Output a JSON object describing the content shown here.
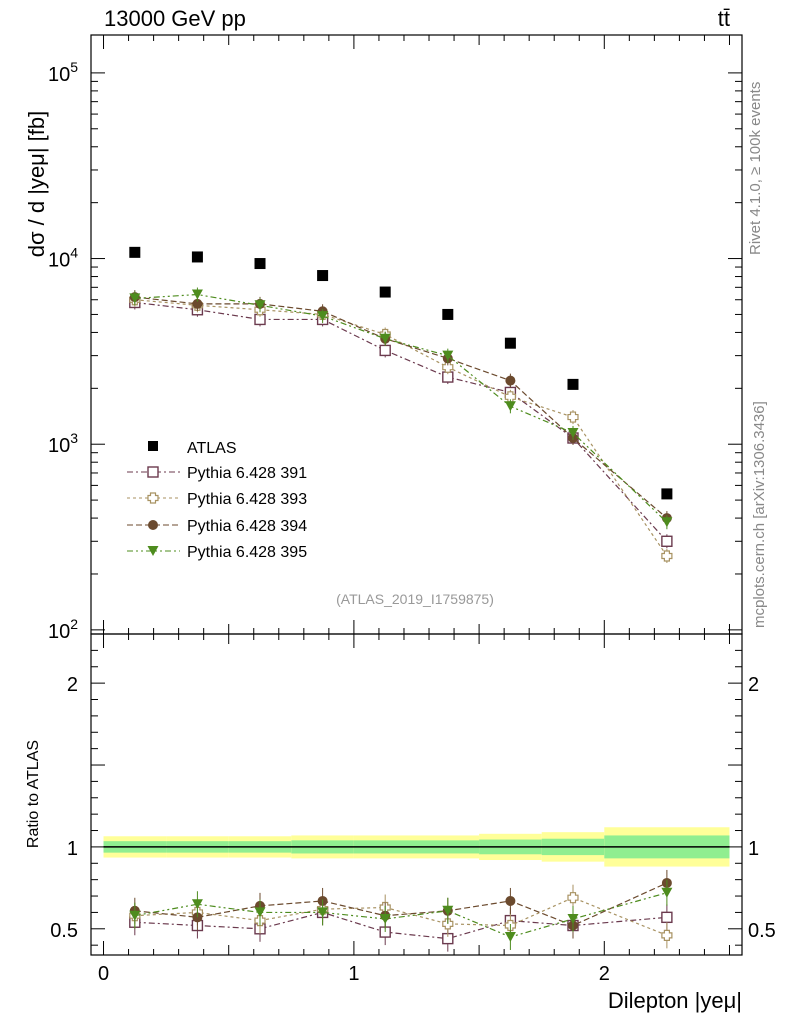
{
  "header": {
    "left": "13000 GeV pp",
    "right": "tt̄"
  },
  "side": {
    "rivet": "Rivet 4.1.0, ≥ 100k events",
    "mcplots": "mcplots.cern.ch [arXiv:1306.3436]"
  },
  "colors": {
    "atlas": "#000000",
    "p391": "#6b3a4e",
    "p393": "#a89262",
    "p394": "#6b4a2e",
    "p395": "#4e8c1e",
    "band_outer": "#ffff99",
    "band_inner": "#90ee90"
  },
  "chart_data": [
    {
      "type": "scatter",
      "title": "13000 GeV pp",
      "ylabel": "dσ / d |yeμ| [fb]",
      "xlabel": "",
      "yscale": "log",
      "ylim": [
        95,
        160000
      ],
      "xlim": [
        -0.05,
        2.55
      ],
      "yticks": [
        100,
        1000,
        10000,
        100000
      ],
      "ytick_labels": [
        {
          "base": "10",
          "exp": "2"
        },
        {
          "base": "10",
          "exp": "3"
        },
        {
          "base": "10",
          "exp": "4"
        },
        {
          "base": "10",
          "exp": "5"
        }
      ],
      "watermark": "(ATLAS_2019_I1759875)",
      "x": [
        0.125,
        0.375,
        0.625,
        0.875,
        1.125,
        1.375,
        1.625,
        1.875,
        2.25
      ],
      "series": [
        {
          "name": "ATLAS",
          "marker": "square-filled",
          "values": [
            10800,
            10200,
            9400,
            8100,
            6600,
            5000,
            3500,
            2100,
            540
          ]
        },
        {
          "name": "Pythia 6.428 391",
          "marker": "square-open",
          "values": [
            5800,
            5300,
            4700,
            4700,
            3200,
            2300,
            1900,
            1080,
            300
          ]
        },
        {
          "name": "Pythia 6.428 393",
          "marker": "cross-open",
          "values": [
            6000,
            5600,
            5300,
            5000,
            3900,
            2600,
            1800,
            1400,
            250
          ]
        },
        {
          "name": "Pythia 6.428 394",
          "marker": "circle-filled",
          "values": [
            6200,
            5700,
            5700,
            5200,
            3700,
            2900,
            2200,
            1080,
            400
          ]
        },
        {
          "name": "Pythia 6.428 395",
          "marker": "triangle-down-filled",
          "values": [
            6100,
            6400,
            5600,
            4900,
            3700,
            3000,
            1600,
            1150,
            380
          ]
        }
      ]
    },
    {
      "type": "scatter",
      "ylabel": "Ratio to ATLAS",
      "xlabel": "Dilepton |yeμ|",
      "ylim": [
        0.34,
        2.3
      ],
      "xlim": [
        -0.05,
        2.55
      ],
      "yticks": [
        0.5,
        1,
        2
      ],
      "ytick_labels": [
        "0.5",
        "1",
        "2"
      ],
      "xticks": [
        0,
        1,
        2
      ],
      "xtick_labels": [
        "0",
        "1",
        "2"
      ],
      "x": [
        0.125,
        0.375,
        0.625,
        0.875,
        1.125,
        1.375,
        1.625,
        1.875,
        2.25
      ],
      "band": {
        "edges": [
          0,
          0.25,
          0.5,
          0.75,
          1.0,
          1.25,
          1.5,
          1.75,
          2.0,
          2.5
        ],
        "outer": [
          0.065,
          0.065,
          0.065,
          0.07,
          0.07,
          0.07,
          0.08,
          0.09,
          0.12
        ],
        "inner": [
          0.035,
          0.035,
          0.035,
          0.04,
          0.04,
          0.04,
          0.045,
          0.05,
          0.07
        ]
      },
      "series": [
        {
          "name": "Pythia 6.428 391",
          "values": [
            0.54,
            0.52,
            0.5,
            0.6,
            0.48,
            0.44,
            0.55,
            0.52,
            0.57
          ]
        },
        {
          "name": "Pythia 6.428 393",
          "values": [
            0.58,
            0.6,
            0.55,
            0.62,
            0.63,
            0.53,
            0.52,
            0.69,
            0.46
          ]
        },
        {
          "name": "Pythia 6.428 394",
          "values": [
            0.61,
            0.57,
            0.64,
            0.67,
            0.58,
            0.61,
            0.67,
            0.52,
            0.78
          ]
        },
        {
          "name": "Pythia 6.428 395",
          "values": [
            0.58,
            0.65,
            0.6,
            0.6,
            0.56,
            0.61,
            0.45,
            0.56,
            0.72
          ]
        }
      ]
    }
  ]
}
